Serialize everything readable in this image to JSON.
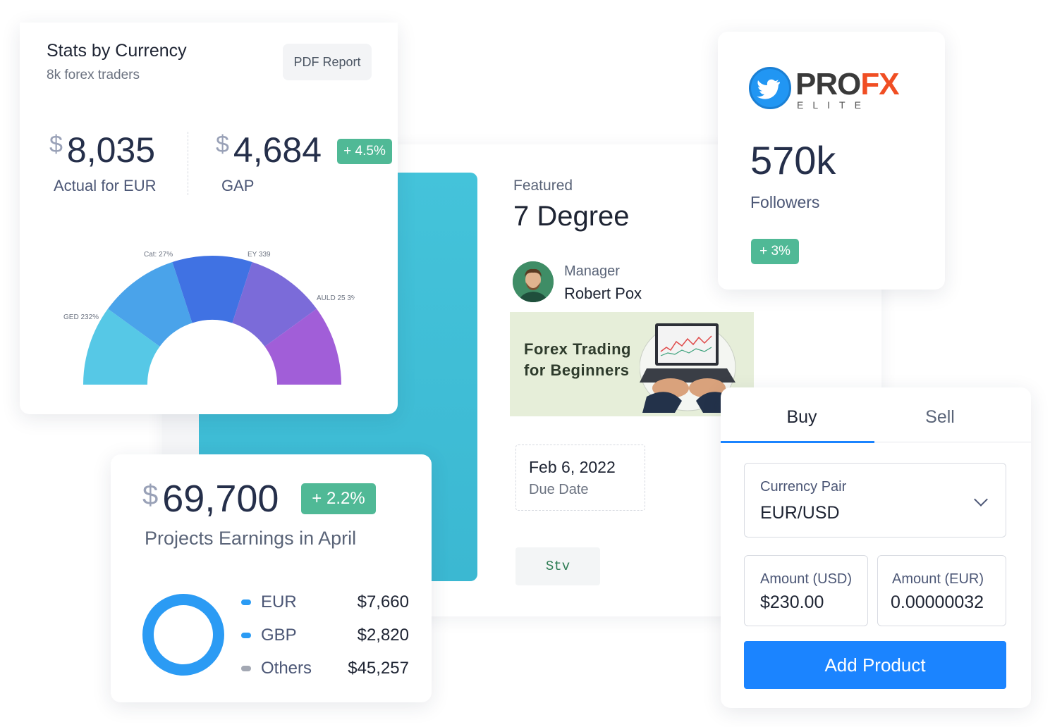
{
  "stats": {
    "title": "Stats by Currency",
    "subtitle": "8k forex traders",
    "pdf_button": "PDF Report",
    "currency_symbol": "$",
    "actual_value": "8,035",
    "actual_label": "Actual for EUR",
    "gap_value": "4,684",
    "gap_label": "GAP",
    "gap_badge": "+ 4.5%",
    "gauge_labels": [
      "GED 232%",
      "Cat: 27%",
      "EY 339",
      "AULD 25 3%"
    ],
    "gauge_colors": [
      "#56c8e6",
      "#4aa3ea",
      "#4072e3",
      "#7b6bd9",
      "#a15ed8"
    ]
  },
  "earnings": {
    "currency_symbol": "$",
    "value": "69,700",
    "badge": "+ 2.2%",
    "label": "Projects Earnings in April",
    "legend": [
      {
        "name": "EUR",
        "value": "$7,660",
        "color": "#2b9bf4"
      },
      {
        "name": "GBP",
        "value": "$2,820",
        "color": "#2b9bf4"
      },
      {
        "name": "Others",
        "value": "$45,257",
        "color": "#a3a8b3"
      }
    ]
  },
  "featured": {
    "label": "Featured",
    "title": "7 Degree",
    "manager_role": "Manager",
    "manager_name": "Robert Pox",
    "banner_line1": "Forex Trading",
    "banner_line2": "for Beginners",
    "date_value": "Feb 6, 2022",
    "date_label": "Due Date",
    "tag": "Stv"
  },
  "followers": {
    "logo_pro": "PRO",
    "logo_fx": "FX",
    "logo_sub": "ELITE",
    "count": "570k",
    "label": "Followers",
    "badge": "+ 3%"
  },
  "trade": {
    "tab_buy": "Buy",
    "tab_sell": "Sell",
    "pair_label": "Currency Pair",
    "pair_value": "EUR/USD",
    "amount_usd_label": "Amount (USD)",
    "amount_usd_value": "$230.00",
    "amount_eur_label": "Amount (EUR)",
    "amount_eur_value": "0.00000032",
    "add_button": "Add Product"
  }
}
